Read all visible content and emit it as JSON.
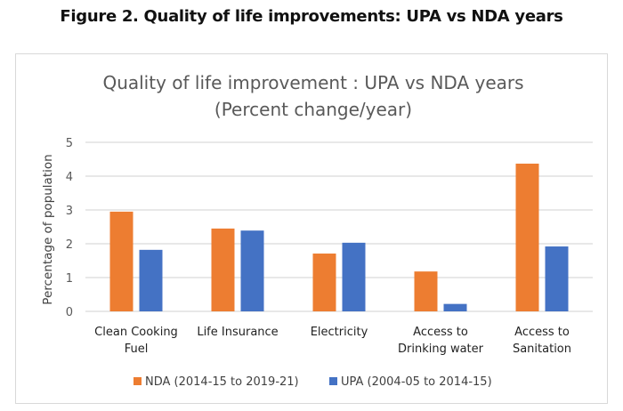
{
  "figure_title": "Figure 2.  Quality of life improvements: UPA vs NDA years",
  "chart_data": {
    "type": "bar",
    "title": [
      "Quality of life improvement : UPA vs NDA years",
      "(Percent change/year)"
    ],
    "xlabel": "",
    "ylabel": "Percentage of population",
    "ylim": [
      0,
      5
    ],
    "yticks": [
      0,
      1,
      2,
      3,
      4,
      5
    ],
    "grid": true,
    "legend_position": "bottom",
    "categories": [
      [
        "Clean Cooking",
        "Fuel"
      ],
      [
        "Life Insurance"
      ],
      [
        "Electricity"
      ],
      [
        "Access to",
        "Drinking water"
      ],
      [
        "Access to",
        "Sanitation"
      ]
    ],
    "series": [
      {
        "name": "NDA (2014-15 to 2019-21)",
        "color": "#ED7D31",
        "values": [
          2.95,
          2.45,
          1.71,
          1.18,
          4.37
        ]
      },
      {
        "name": "UPA (2004-05 to 2014-15)",
        "color": "#4472C4",
        "values": [
          1.82,
          2.39,
          2.03,
          0.22,
          1.92
        ]
      }
    ]
  }
}
